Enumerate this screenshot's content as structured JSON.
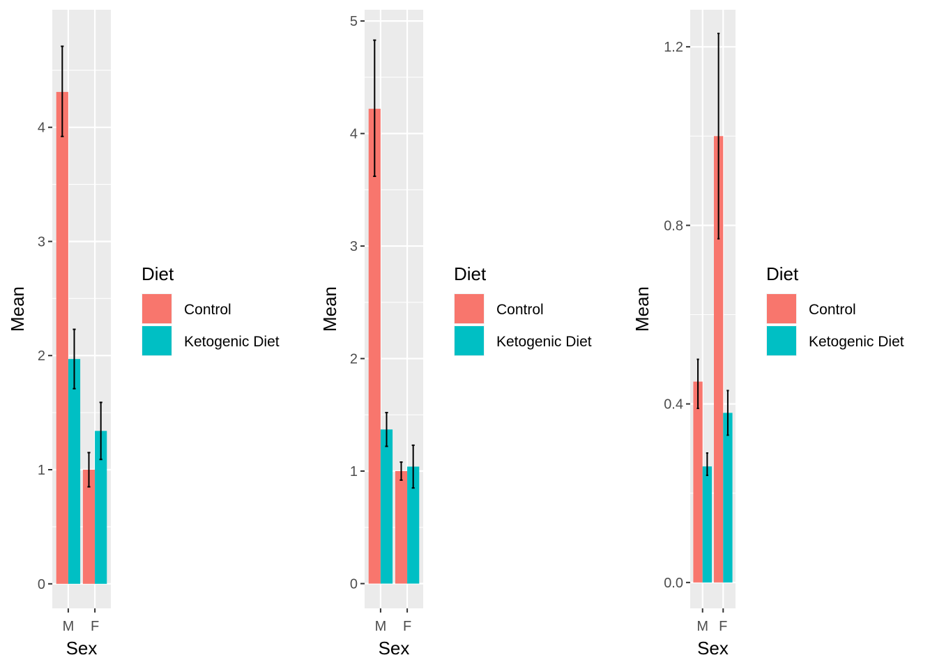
{
  "chart_data": [
    {
      "type": "bar",
      "categories": [
        "M",
        "F"
      ],
      "xlabel": "Sex",
      "ylabel": "Mean",
      "ylim": [
        -0.215,
        5.03
      ],
      "yticks": [
        0,
        1,
        2,
        3,
        4
      ],
      "ytick_labels": [
        "0",
        "1",
        "2",
        "3",
        "4"
      ],
      "legend": {
        "title": "Diet",
        "position": "right"
      },
      "grid": true,
      "series": [
        {
          "name": "Control",
          "color": "#F8766D",
          "values": [
            4.31,
            1.0
          ],
          "err_low": [
            3.92,
            0.85
          ],
          "err_high": [
            4.71,
            1.15
          ]
        },
        {
          "name": "Ketogenic Diet",
          "color": "#00BFC4",
          "values": [
            1.97,
            1.34
          ],
          "err_low": [
            1.71,
            1.09
          ],
          "err_high": [
            2.23,
            1.59
          ]
        }
      ]
    },
    {
      "type": "bar",
      "categories": [
        "M",
        "F"
      ],
      "xlabel": "Sex",
      "ylabel": "Mean",
      "ylim": [
        -0.22,
        5.1
      ],
      "yticks": [
        0,
        1,
        2,
        3,
        4,
        5
      ],
      "ytick_labels": [
        "0",
        "1",
        "2",
        "3",
        "4",
        "5"
      ],
      "legend": {
        "title": "Diet",
        "position": "right"
      },
      "grid": true,
      "series": [
        {
          "name": "Control",
          "color": "#F8766D",
          "values": [
            4.22,
            1.0
          ],
          "err_low": [
            3.62,
            0.92
          ],
          "err_high": [
            4.83,
            1.08
          ]
        },
        {
          "name": "Ketogenic Diet",
          "color": "#00BFC4",
          "values": [
            1.37,
            1.04
          ],
          "err_low": [
            1.22,
            0.85
          ],
          "err_high": [
            1.52,
            1.23
          ]
        }
      ]
    },
    {
      "type": "bar",
      "categories": [
        "M",
        "F"
      ],
      "xlabel": "Sex",
      "ylabel": "Mean",
      "ylim": [
        -0.058,
        1.283
      ],
      "yticks": [
        0.0,
        0.4,
        0.8,
        1.2
      ],
      "ytick_labels": [
        "0.0",
        "0.4",
        "0.8",
        "1.2"
      ],
      "legend": {
        "title": "Diet",
        "position": "right"
      },
      "grid": true,
      "series": [
        {
          "name": "Control",
          "color": "#F8766D",
          "values": [
            0.45,
            1.0
          ],
          "err_low": [
            0.39,
            0.77
          ],
          "err_high": [
            0.5,
            1.23
          ]
        },
        {
          "name": "Ketogenic Diet",
          "color": "#00BFC4",
          "values": [
            0.26,
            0.38
          ],
          "err_low": [
            0.24,
            0.33
          ],
          "err_high": [
            0.29,
            0.43
          ]
        }
      ]
    }
  ]
}
